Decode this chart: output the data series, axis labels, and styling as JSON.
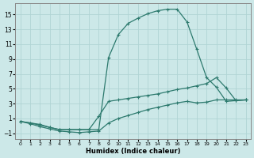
{
  "xlabel": "Humidex (Indice chaleur)",
  "bg_color": "#cce8e8",
  "grid_color": "#b0d4d4",
  "line_color": "#2d7a6e",
  "xlim": [
    -0.5,
    23.5
  ],
  "ylim": [
    -1.8,
    16.5
  ],
  "yticks": [
    -1,
    1,
    3,
    5,
    7,
    9,
    11,
    13,
    15
  ],
  "xticks": [
    0,
    1,
    2,
    3,
    4,
    5,
    6,
    7,
    8,
    9,
    10,
    11,
    12,
    13,
    14,
    15,
    16,
    17,
    18,
    19,
    20,
    21,
    22,
    23
  ],
  "line_max": {
    "x": [
      0,
      1,
      2,
      3,
      4,
      5,
      6,
      7,
      8,
      9,
      10,
      11,
      12,
      13,
      14,
      15,
      16,
      17,
      18,
      19,
      20,
      21,
      22,
      23
    ],
    "y": [
      0.6,
      0.4,
      0.2,
      -0.2,
      -0.5,
      -0.5,
      -0.5,
      -0.5,
      -0.5,
      9.2,
      12.3,
      13.8,
      14.5,
      15.1,
      15.5,
      15.7,
      15.7,
      14.0,
      10.3,
      6.5,
      5.2,
      3.3,
      3.4,
      3.5
    ]
  },
  "line_mean": {
    "x": [
      0,
      1,
      2,
      3,
      4,
      5,
      6,
      7,
      8,
      9,
      10,
      11,
      12,
      13,
      14,
      15,
      16,
      17,
      18,
      19,
      20,
      21,
      22,
      23
    ],
    "y": [
      0.6,
      0.4,
      0.1,
      -0.2,
      -0.5,
      -0.5,
      -0.5,
      -0.5,
      1.3,
      3.3,
      3.5,
      3.7,
      3.9,
      4.1,
      4.3,
      4.6,
      4.9,
      5.1,
      5.4,
      5.7,
      6.5,
      5.1,
      3.4,
      3.5
    ]
  },
  "line_min": {
    "x": [
      0,
      1,
      2,
      3,
      4,
      5,
      6,
      7,
      8,
      9,
      10,
      11,
      12,
      13,
      14,
      15,
      16,
      17,
      18,
      19,
      20,
      21,
      22,
      23
    ],
    "y": [
      0.6,
      0.3,
      -0.1,
      -0.4,
      -0.7,
      -0.8,
      -0.9,
      -0.8,
      -0.7,
      0.4,
      1.0,
      1.4,
      1.8,
      2.2,
      2.5,
      2.8,
      3.1,
      3.3,
      3.1,
      3.2,
      3.5,
      3.5,
      3.5,
      3.5
    ]
  }
}
